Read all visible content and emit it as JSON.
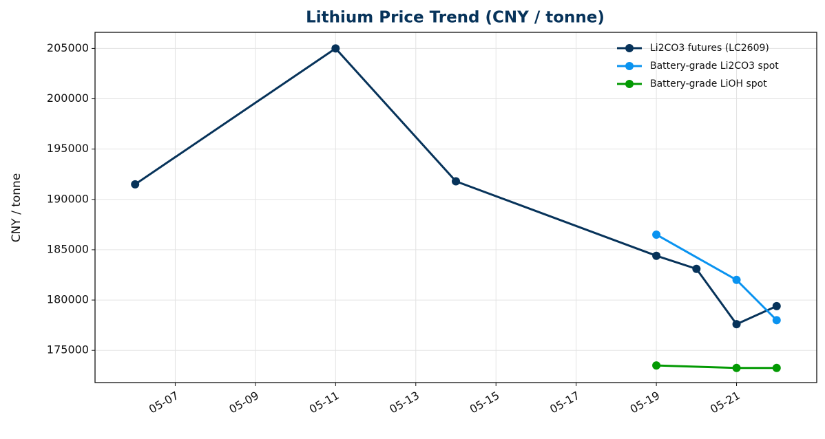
{
  "chart_data": {
    "type": "line",
    "title": "Lithium Price Trend  (CNY / tonne)",
    "ylabel": "CNY / tonne",
    "series": [
      {
        "name": "Li2CO3 futures (LC2609)",
        "color": "#07335a",
        "x": [
          "05-06",
          "05-11",
          "05-14",
          "05-19",
          "05-20",
          "05-21",
          "05-22"
        ],
        "values": [
          191500,
          205000,
          191800,
          184400,
          183100,
          177600,
          179400
        ]
      },
      {
        "name": "Battery-grade Li2CO3 spot",
        "color": "#0a93f0",
        "x": [
          "05-19",
          "05-21",
          "05-22"
        ],
        "values": [
          186500,
          182000,
          178000
        ]
      },
      {
        "name": "Battery-grade LiOH spot",
        "color": "#039a03",
        "x": [
          "05-19",
          "05-21",
          "05-22"
        ],
        "values": [
          173500,
          173250,
          173250
        ]
      }
    ],
    "xlim": [
      "05-05",
      "05-23"
    ],
    "xticks": [
      "05-07",
      "05-09",
      "05-11",
      "05-13",
      "05-15",
      "05-17",
      "05-19",
      "05-21"
    ],
    "ylim": [
      171800,
      206600
    ],
    "yticks": [
      175000,
      180000,
      185000,
      190000,
      195000,
      200000,
      205000
    ],
    "grid": true,
    "legend": "upper right"
  }
}
